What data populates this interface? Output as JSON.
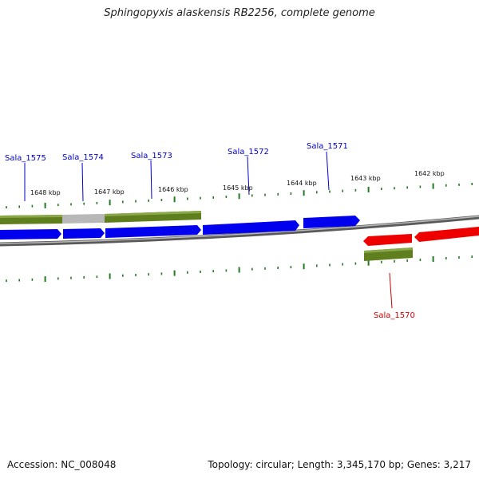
{
  "title": "Sphingopyxis alaskensis RB2256, complete genome",
  "footer": {
    "accession": "Accession: NC_008048",
    "stats": "Topology: circular; Length: 3,345,170 bp; Genes: 3,217"
  },
  "colors": {
    "forward_gene": "#0000ee",
    "reverse_gene": "#ee0000",
    "cds_feature": "#5f7f1f",
    "pseudo_feature": "#b8b8b8",
    "tick": "#227a22",
    "backbone": "#7a7a7a"
  },
  "scale_labels": [
    "1648 kbp",
    "1647 kbp",
    "1646 kbp",
    "1645 kbp",
    "1644 kbp",
    "1643 kbp",
    "1642 kbp"
  ],
  "genes": [
    {
      "name": "Sala_1575",
      "strand": "forward"
    },
    {
      "name": "Sala_1574",
      "strand": "forward"
    },
    {
      "name": "Sala_1573",
      "strand": "forward"
    },
    {
      "name": "Sala_1572",
      "strand": "forward"
    },
    {
      "name": "Sala_1571",
      "strand": "forward"
    },
    {
      "name": "Sala_1570",
      "strand": "reverse"
    }
  ]
}
